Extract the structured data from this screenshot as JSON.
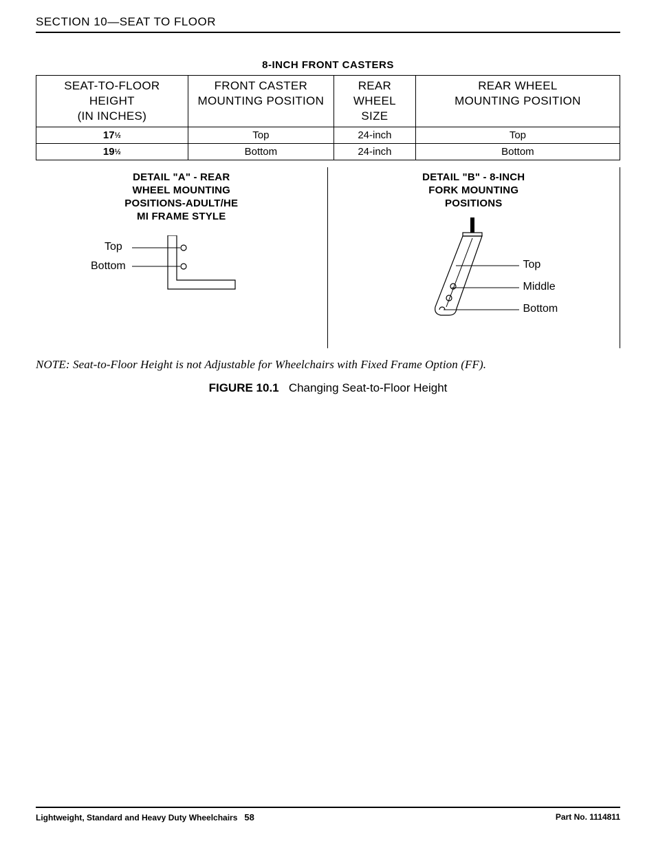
{
  "header": {
    "section_label": "SECTION 10—SEAT TO FLOOR"
  },
  "table": {
    "title": "8-INCH FRONT CASTERS",
    "columns": [
      {
        "label": "SEAT-TO-FLOOR\nHEIGHT\n(IN INCHES)",
        "width": "26%"
      },
      {
        "label": "FRONT CASTER\nMOUNTING POSITION",
        "width": "25%"
      },
      {
        "label": "REAR\nWHEEL\nSIZE",
        "width": "14%"
      },
      {
        "label": "REAR WHEEL\nMOUNTING POSITION",
        "width": "35%"
      }
    ],
    "rows": [
      {
        "cells": [
          "17½",
          "Top",
          "24-inch",
          "Top"
        ]
      },
      {
        "cells": [
          "19½",
          "Bottom",
          "24-inch",
          "Bottom"
        ]
      }
    ]
  },
  "details": {
    "a": {
      "title": "DETAIL \"A\" - REAR\nWHEEL MOUNTING\nPOSITIONS-ADULT/HE\nMI FRAME STYLE",
      "labels": {
        "top": "Top",
        "bottom": "Bottom"
      }
    },
    "b": {
      "title": "DETAIL \"B\" - 8-INCH\nFORK MOUNTING\nPOSITIONS",
      "labels": {
        "top": "Top",
        "middle": "Middle",
        "bottom": "Bottom"
      }
    }
  },
  "note": "NOTE: Seat-to-Floor Height is not Adjustable for Wheelchairs with Fixed Frame Option (FF).",
  "figure": {
    "label": "FIGURE 10.1",
    "caption": "Changing Seat-to-Floor Height"
  },
  "footer": {
    "left": "Lightweight, Standard and Heavy Duty Wheelchairs",
    "page": "58",
    "right": "Part No. 1114811"
  },
  "colors": {
    "text": "#000000",
    "border": "#000000",
    "background": "#ffffff"
  }
}
